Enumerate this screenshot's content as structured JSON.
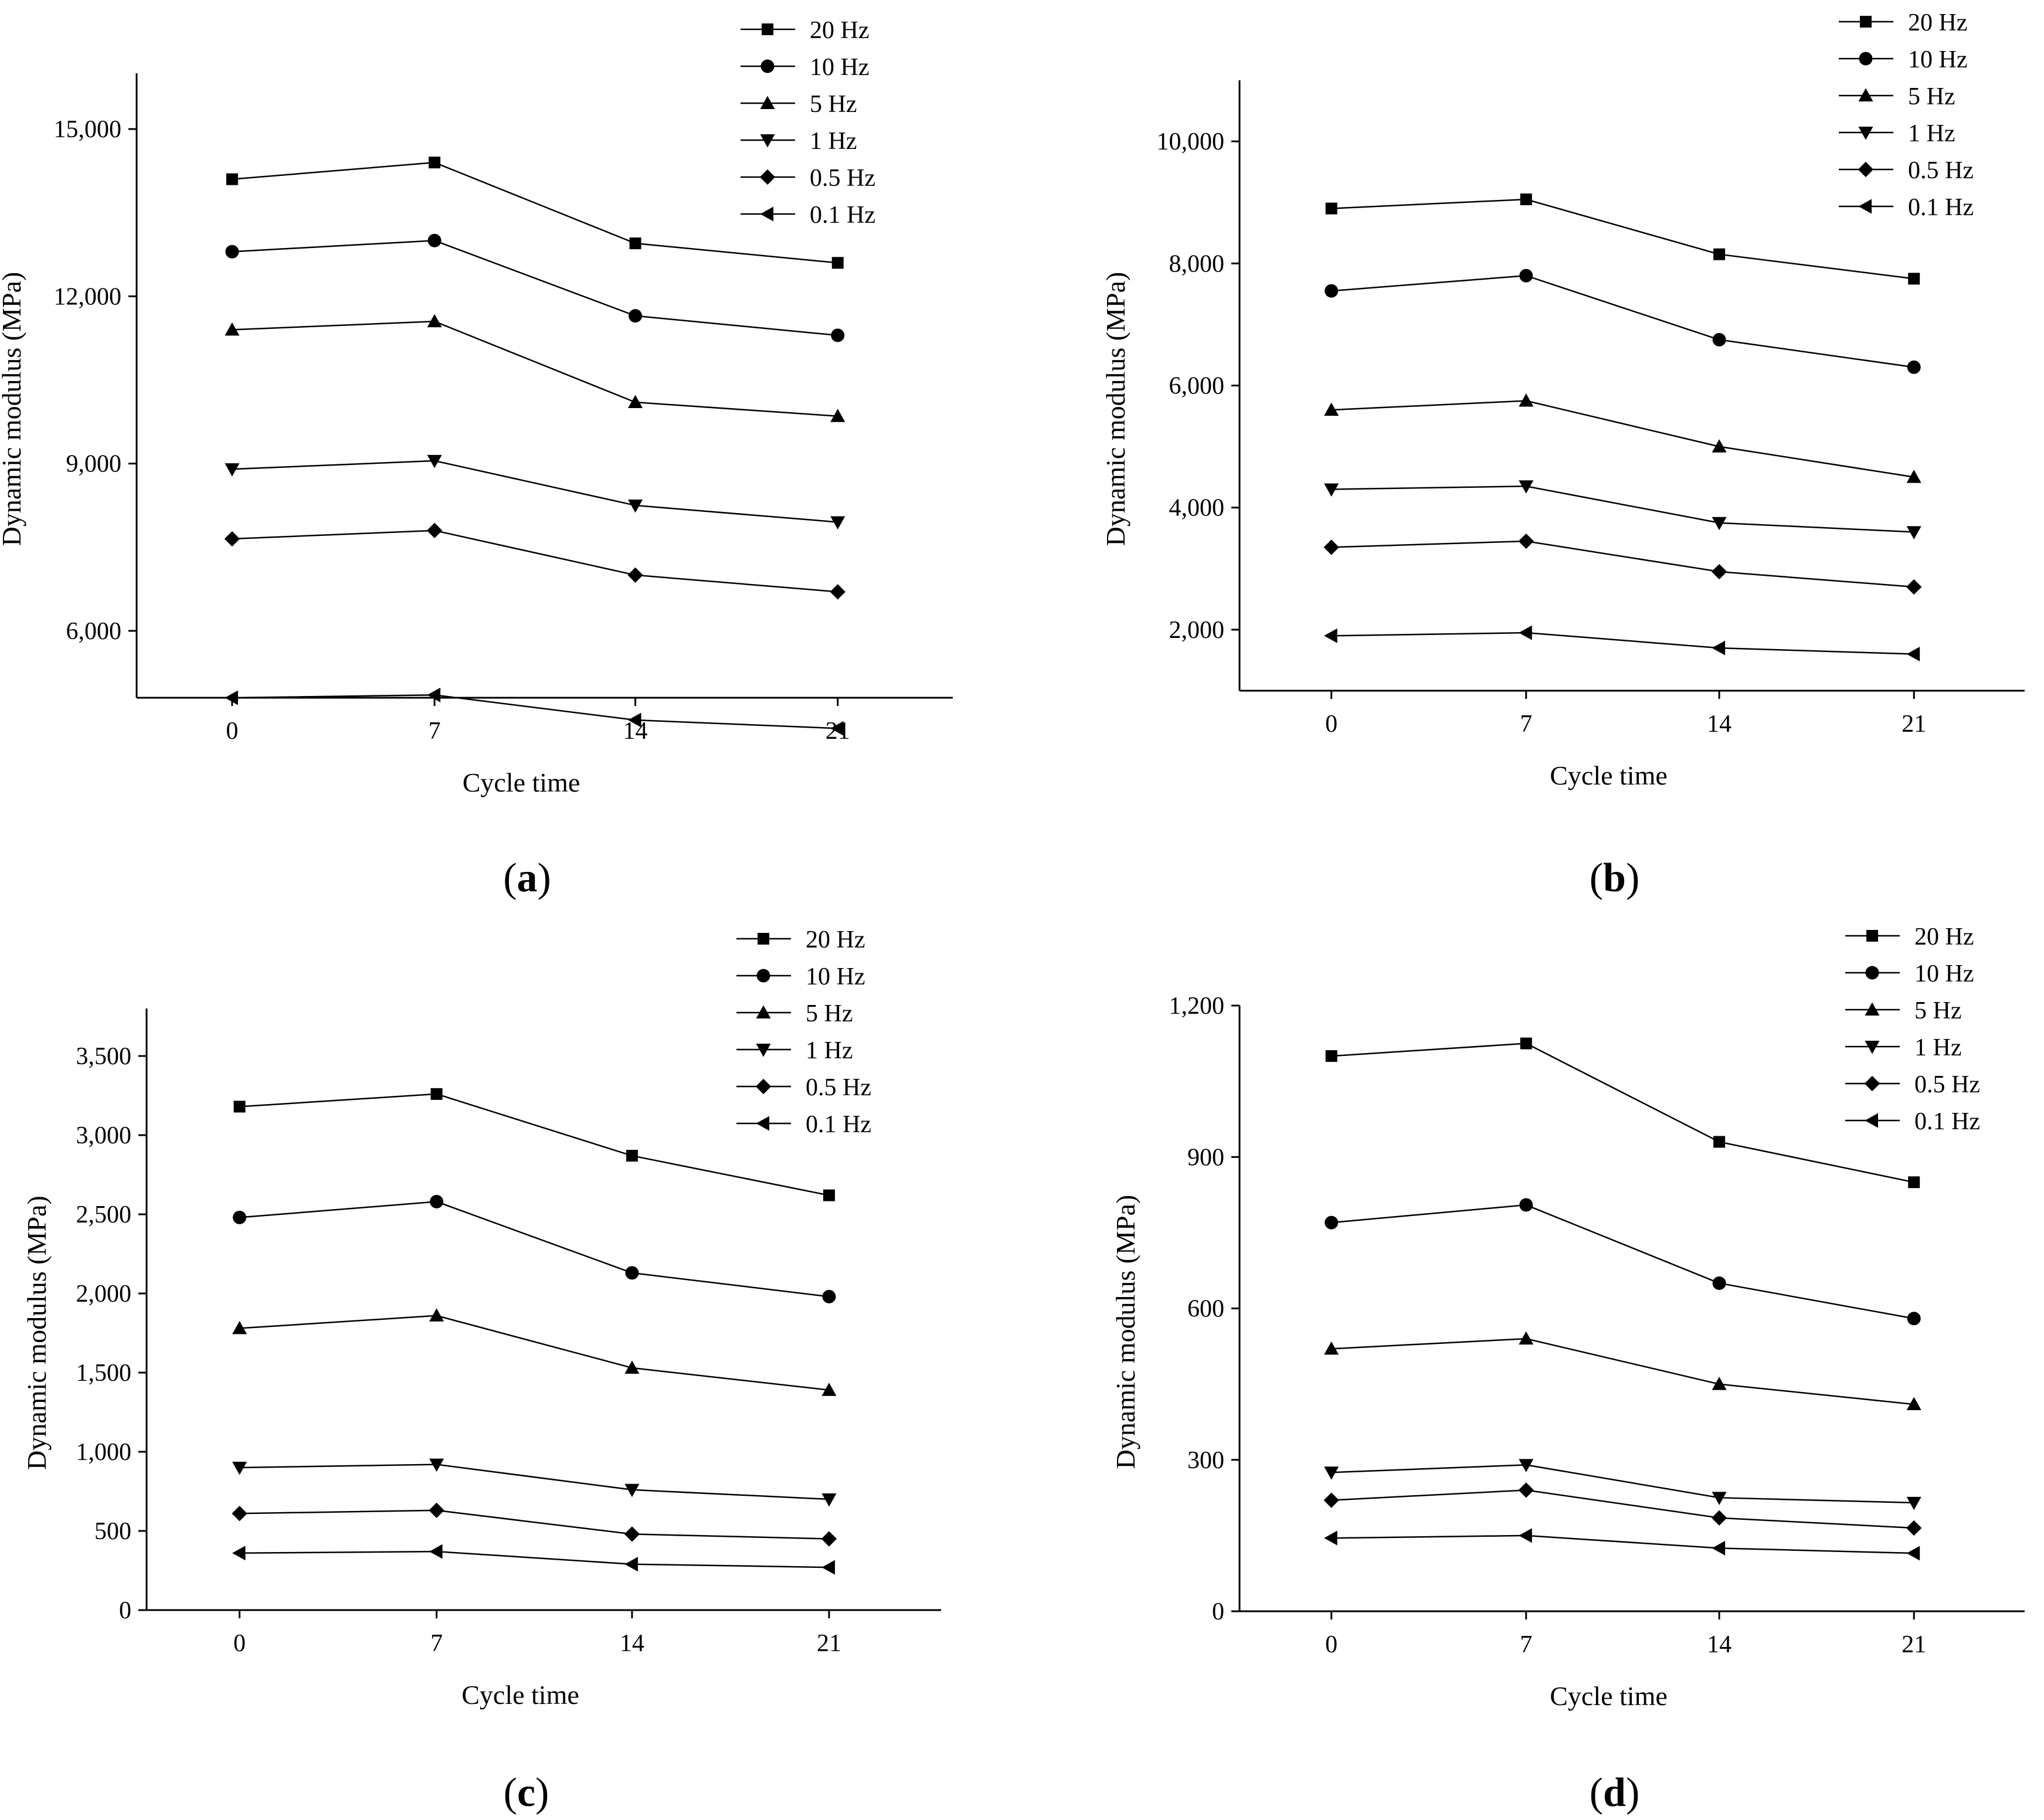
{
  "chart_data": [
    {
      "type": "line",
      "panel_label": "(a)",
      "xlabel": "Cycle time",
      "ylabel": "Dynamic modulus (MPa)",
      "categories": [
        "0",
        "7",
        "14",
        "21"
      ],
      "ylim": [
        4800,
        16000
      ],
      "yticks": [
        6000,
        9000,
        12000,
        15000
      ],
      "ytick_labels": [
        "6,000",
        "9,000",
        "12,000",
        "15,000"
      ],
      "legend_position": "top-right",
      "series": [
        {
          "name": "20 Hz",
          "marker": "square",
          "values": [
            14100,
            14400,
            12950,
            12600
          ]
        },
        {
          "name": "10 Hz",
          "marker": "circle",
          "values": [
            12800,
            13000,
            11650,
            11300
          ]
        },
        {
          "name": "5 Hz",
          "marker": "triangle-up",
          "values": [
            11400,
            11550,
            10100,
            9850
          ]
        },
        {
          "name": "1 Hz",
          "marker": "triangle-down",
          "values": [
            8900,
            9050,
            8250,
            7950
          ]
        },
        {
          "name": "0.5 Hz",
          "marker": "diamond",
          "values": [
            7650,
            7800,
            7000,
            6700
          ]
        },
        {
          "name": "0.1 Hz",
          "marker": "triangle-left",
          "values": [
            4800,
            4850,
            4400,
            4250
          ]
        }
      ]
    },
    {
      "type": "line",
      "panel_label": "(b)",
      "xlabel": "Cycle time",
      "ylabel": "Dynamic modulus (MPa)",
      "categories": [
        "0",
        "7",
        "14",
        "21"
      ],
      "ylim": [
        1000,
        11000
      ],
      "yticks": [
        2000,
        4000,
        6000,
        8000,
        10000
      ],
      "ytick_labels": [
        "2,000",
        "4,000",
        "6,000",
        "8,000",
        "10,000"
      ],
      "legend_position": "top-right",
      "series": [
        {
          "name": "20 Hz",
          "marker": "square",
          "values": [
            8900,
            9050,
            8150,
            7750
          ]
        },
        {
          "name": "10 Hz",
          "marker": "circle",
          "values": [
            7550,
            7800,
            6750,
            6300
          ]
        },
        {
          "name": "5 Hz",
          "marker": "triangle-up",
          "values": [
            5600,
            5750,
            5000,
            4500
          ]
        },
        {
          "name": "1 Hz",
          "marker": "triangle-down",
          "values": [
            4300,
            4350,
            3750,
            3600
          ]
        },
        {
          "name": "0.5 Hz",
          "marker": "diamond",
          "values": [
            3350,
            3450,
            2950,
            2700
          ]
        },
        {
          "name": "0.1 Hz",
          "marker": "triangle-left",
          "values": [
            1900,
            1950,
            1700,
            1600
          ]
        }
      ]
    },
    {
      "type": "line",
      "panel_label": "(c)",
      "xlabel": "Cycle time",
      "ylabel": "Dynamic modulus (MPa)",
      "categories": [
        "0",
        "7",
        "14",
        "21"
      ],
      "ylim": [
        0,
        3800
      ],
      "yticks": [
        0,
        500,
        1000,
        1500,
        2000,
        2500,
        3000,
        3500
      ],
      "ytick_labels": [
        "0",
        "500",
        "1,000",
        "1,500",
        "2,000",
        "2,500",
        "3,000",
        "3,500"
      ],
      "legend_position": "top-right",
      "series": [
        {
          "name": "20 Hz",
          "marker": "square",
          "values": [
            3180,
            3260,
            2870,
            2620
          ]
        },
        {
          "name": "10 Hz",
          "marker": "circle",
          "values": [
            2480,
            2580,
            2130,
            1980
          ]
        },
        {
          "name": "5 Hz",
          "marker": "triangle-up",
          "values": [
            1780,
            1860,
            1530,
            1390
          ]
        },
        {
          "name": "1 Hz",
          "marker": "triangle-down",
          "values": [
            900,
            920,
            760,
            700
          ]
        },
        {
          "name": "0.5 Hz",
          "marker": "diamond",
          "values": [
            610,
            630,
            480,
            450
          ]
        },
        {
          "name": "0.1 Hz",
          "marker": "triangle-left",
          "values": [
            360,
            370,
            290,
            270
          ]
        }
      ]
    },
    {
      "type": "line",
      "panel_label": "(d)",
      "xlabel": "Cycle time",
      "ylabel": "Dynamic modulus (MPa)",
      "categories": [
        "0",
        "7",
        "14",
        "21"
      ],
      "ylim": [
        0,
        1200
      ],
      "yticks": [
        0,
        300,
        600,
        900,
        1200
      ],
      "ytick_labels": [
        "0",
        "300",
        "600",
        "900",
        "1,200"
      ],
      "legend_position": "top-right",
      "series": [
        {
          "name": "20 Hz",
          "marker": "square",
          "values": [
            1100,
            1125,
            930,
            850
          ]
        },
        {
          "name": "10 Hz",
          "marker": "circle",
          "values": [
            770,
            805,
            650,
            580
          ]
        },
        {
          "name": "5 Hz",
          "marker": "triangle-up",
          "values": [
            520,
            540,
            450,
            410
          ]
        },
        {
          "name": "1 Hz",
          "marker": "triangle-down",
          "values": [
            275,
            290,
            225,
            215
          ]
        },
        {
          "name": "0.5 Hz",
          "marker": "diamond",
          "values": [
            220,
            240,
            185,
            165
          ]
        },
        {
          "name": "0.1 Hz",
          "marker": "triangle-left",
          "values": [
            145,
            150,
            125,
            115
          ]
        }
      ]
    }
  ]
}
